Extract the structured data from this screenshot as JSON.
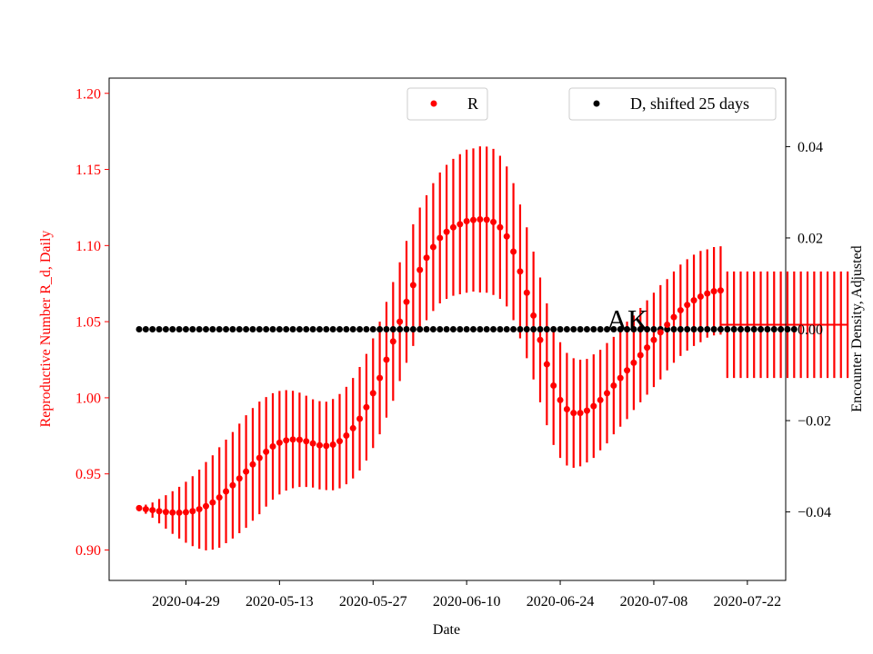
{
  "chart_data": {
    "type": "scatter",
    "title": "",
    "annotation": "AK",
    "xlabel": "Date",
    "ylabel_left": "Reproductive Number R_d, Daily",
    "ylabel_right": "Encounter Density, Adjusted",
    "x_start": "2020-04-22",
    "x_ticks": [
      "2020-04-29",
      "2020-05-13",
      "2020-05-27",
      "2020-06-10",
      "2020-06-24",
      "2020-07-08",
      "2020-07-22"
    ],
    "y_left_ticks": [
      "0.90",
      "0.95",
      "1.00",
      "1.05",
      "1.10",
      "1.15",
      "1.20"
    ],
    "y_right_ticks": [
      "−0.04",
      "−0.02",
      "0.00",
      "0.02",
      "0.04"
    ],
    "ylim_left": [
      0.88,
      1.21
    ],
    "ylim_right": [
      -0.055,
      0.055
    ],
    "legend": {
      "r_label": "R",
      "d_label": "D, shifted 25 days",
      "r_position": "top-center",
      "d_position": "top-right"
    },
    "colors": {
      "r": "#ff0000",
      "d": "#000000",
      "left_axis": "#ff0000",
      "right_axis": "#000000"
    },
    "series_r": {
      "name": "R",
      "values": [
        0.9275,
        0.9268,
        0.9262,
        0.9255,
        0.925,
        0.9246,
        0.9245,
        0.9248,
        0.9255,
        0.9268,
        0.9288,
        0.9312,
        0.9345,
        0.9385,
        0.9425,
        0.947,
        0.9515,
        0.9562,
        0.9605,
        0.9645,
        0.968,
        0.9705,
        0.972,
        0.9726,
        0.9724,
        0.9714,
        0.97,
        0.9688,
        0.9684,
        0.9692,
        0.9715,
        0.9752,
        0.98,
        0.9862,
        0.9938,
        1.003,
        1.013,
        1.025,
        1.037,
        1.05,
        1.063,
        1.074,
        1.084,
        1.092,
        1.099,
        1.105,
        1.109,
        1.112,
        1.114,
        1.116,
        1.1168,
        1.1172,
        1.117,
        1.1155,
        1.112,
        1.106,
        1.096,
        1.083,
        1.069,
        1.054,
        1.038,
        1.022,
        1.008,
        0.9985,
        0.9925,
        0.99,
        0.99,
        0.9915,
        0.9945,
        0.9985,
        1.003,
        1.008,
        1.013,
        1.018,
        1.023,
        1.028,
        1.033,
        1.038,
        1.043,
        1.048,
        1.053,
        1.0575,
        1.061,
        1.064,
        1.0665,
        1.0685,
        1.07,
        1.0705
      ],
      "error": [
        0.002,
        0.003,
        0.005,
        0.008,
        0.011,
        0.014,
        0.017,
        0.02,
        0.023,
        0.026,
        0.029,
        0.031,
        0.033,
        0.034,
        0.035,
        0.036,
        0.037,
        0.037,
        0.037,
        0.036,
        0.035,
        0.034,
        0.033,
        0.032,
        0.031,
        0.03,
        0.029,
        0.029,
        0.029,
        0.03,
        0.031,
        0.032,
        0.033,
        0.034,
        0.035,
        0.036,
        0.037,
        0.038,
        0.039,
        0.039,
        0.04,
        0.04,
        0.041,
        0.041,
        0.042,
        0.043,
        0.044,
        0.045,
        0.046,
        0.047,
        0.047,
        0.048,
        0.048,
        0.048,
        0.047,
        0.046,
        0.045,
        0.044,
        0.043,
        0.042,
        0.041,
        0.04,
        0.039,
        0.038,
        0.037,
        0.036,
        0.035,
        0.034,
        0.034,
        0.033,
        0.033,
        0.032,
        0.032,
        0.032,
        0.031,
        0.031,
        0.031,
        0.031,
        0.031,
        0.03,
        0.03,
        0.03,
        0.03,
        0.03,
        0.03,
        0.029,
        0.029,
        0.029
      ]
    },
    "extension_r": {
      "value": 1.048,
      "error": 0.035,
      "days": 19
    },
    "series_d": {
      "name": "D, shifted 25 days",
      "value": 0.0,
      "count": 99
    }
  }
}
